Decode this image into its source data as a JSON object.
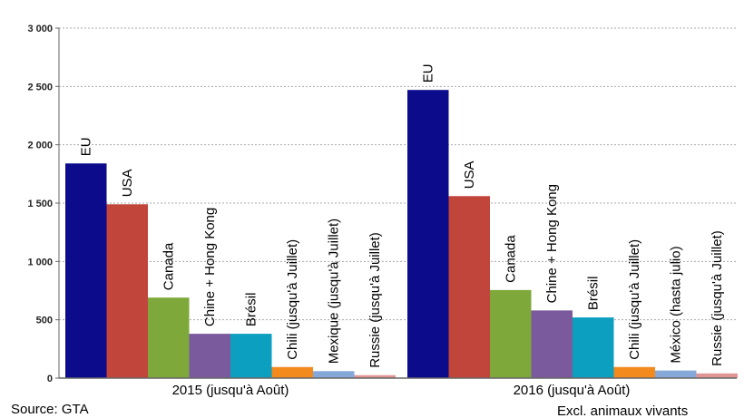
{
  "chart_data": {
    "type": "bar",
    "title": "",
    "xlabel": "",
    "ylabel": "",
    "ylim": [
      0,
      3000
    ],
    "yticks": [
      0,
      500,
      1000,
      1500,
      2000,
      2500,
      3000
    ],
    "ytick_labels": [
      "0",
      "500",
      "1 000",
      "1 500",
      "2 000",
      "2 500",
      "3 000"
    ],
    "grid": true,
    "groups": [
      {
        "label": "2015 (jusqu'à Août)",
        "bars": [
          {
            "label": "EU",
            "value": 1840,
            "color": "#0b0b8c"
          },
          {
            "label": "USA",
            "value": 1490,
            "color": "#c1453b"
          },
          {
            "label": "Canada",
            "value": 690,
            "color": "#7ea83a"
          },
          {
            "label": "Chine + Hong Kong",
            "value": 380,
            "color": "#7a5a9c"
          },
          {
            "label": "Brésil",
            "value": 380,
            "color": "#0c9fbf"
          },
          {
            "label": "Chili (jusqu'à Juillet)",
            "value": 95,
            "color": "#f28a1e"
          },
          {
            "label": "Mexique (jusqu'à Juillet)",
            "value": 60,
            "color": "#86a8d8"
          },
          {
            "label": "Russie (jusqu'à Juillet)",
            "value": 25,
            "color": "#e09494"
          }
        ]
      },
      {
        "label": "2016 (jusqu'à Août)",
        "bars": [
          {
            "label": "EU",
            "value": 2470,
            "color": "#0b0b8c"
          },
          {
            "label": "USA",
            "value": 1560,
            "color": "#c1453b"
          },
          {
            "label": "Canada",
            "value": 755,
            "color": "#7ea83a"
          },
          {
            "label": "Chine + Hong Kong",
            "value": 580,
            "color": "#7a5a9c"
          },
          {
            "label": "Brésil",
            "value": 520,
            "color": "#0c9fbf"
          },
          {
            "label": "Chili (jusqu'à Juillet)",
            "value": 95,
            "color": "#f28a1e"
          },
          {
            "label": "México (hasta julio)",
            "value": 65,
            "color": "#86a8d8"
          },
          {
            "label": "Russie (jusqu'à Juillet)",
            "value": 40,
            "color": "#e09494"
          }
        ]
      }
    ],
    "source": "Source: GTA",
    "note": "Excl. animaux vivants"
  }
}
